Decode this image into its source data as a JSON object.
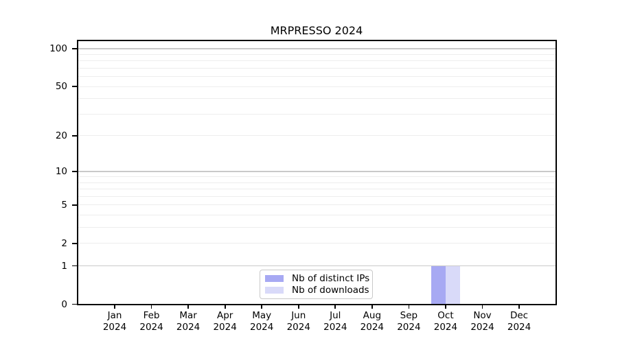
{
  "chart_data": {
    "type": "bar",
    "title": "MRPRESSO 2024",
    "categories": [
      "Jan 2024",
      "Feb 2024",
      "Mar 2024",
      "Apr 2024",
      "May 2024",
      "Jun 2024",
      "Jul 2024",
      "Aug 2024",
      "Sep 2024",
      "Oct 2024",
      "Nov 2024",
      "Dec 2024"
    ],
    "series": [
      {
        "name": "Nb of distinct IPs",
        "color": "#a7a9f3",
        "values": [
          0,
          0,
          0,
          0,
          0,
          0,
          0,
          0,
          0,
          1,
          0,
          0
        ]
      },
      {
        "name": "Nb of downloads",
        "color": "#d9daf9",
        "values": [
          0,
          0,
          0,
          0,
          0,
          0,
          0,
          0,
          0,
          1,
          0,
          0
        ]
      }
    ],
    "xlabel": "",
    "ylabel": "",
    "yscale": "log1p",
    "yticks": [
      0,
      1,
      2,
      5,
      10,
      20,
      50,
      100
    ],
    "ylim": [
      0,
      115
    ],
    "grid": "horizontal",
    "legend_position": "bottom-center",
    "colors": {
      "bar_distinct_ips": "#a7a9f3",
      "bar_downloads": "#d9daf9",
      "major_grid": "#c9c9c9",
      "minor_grid": "#ededed",
      "axis": "#000000",
      "legend_border": "#c8c8c8",
      "background": "#ffffff"
    }
  }
}
